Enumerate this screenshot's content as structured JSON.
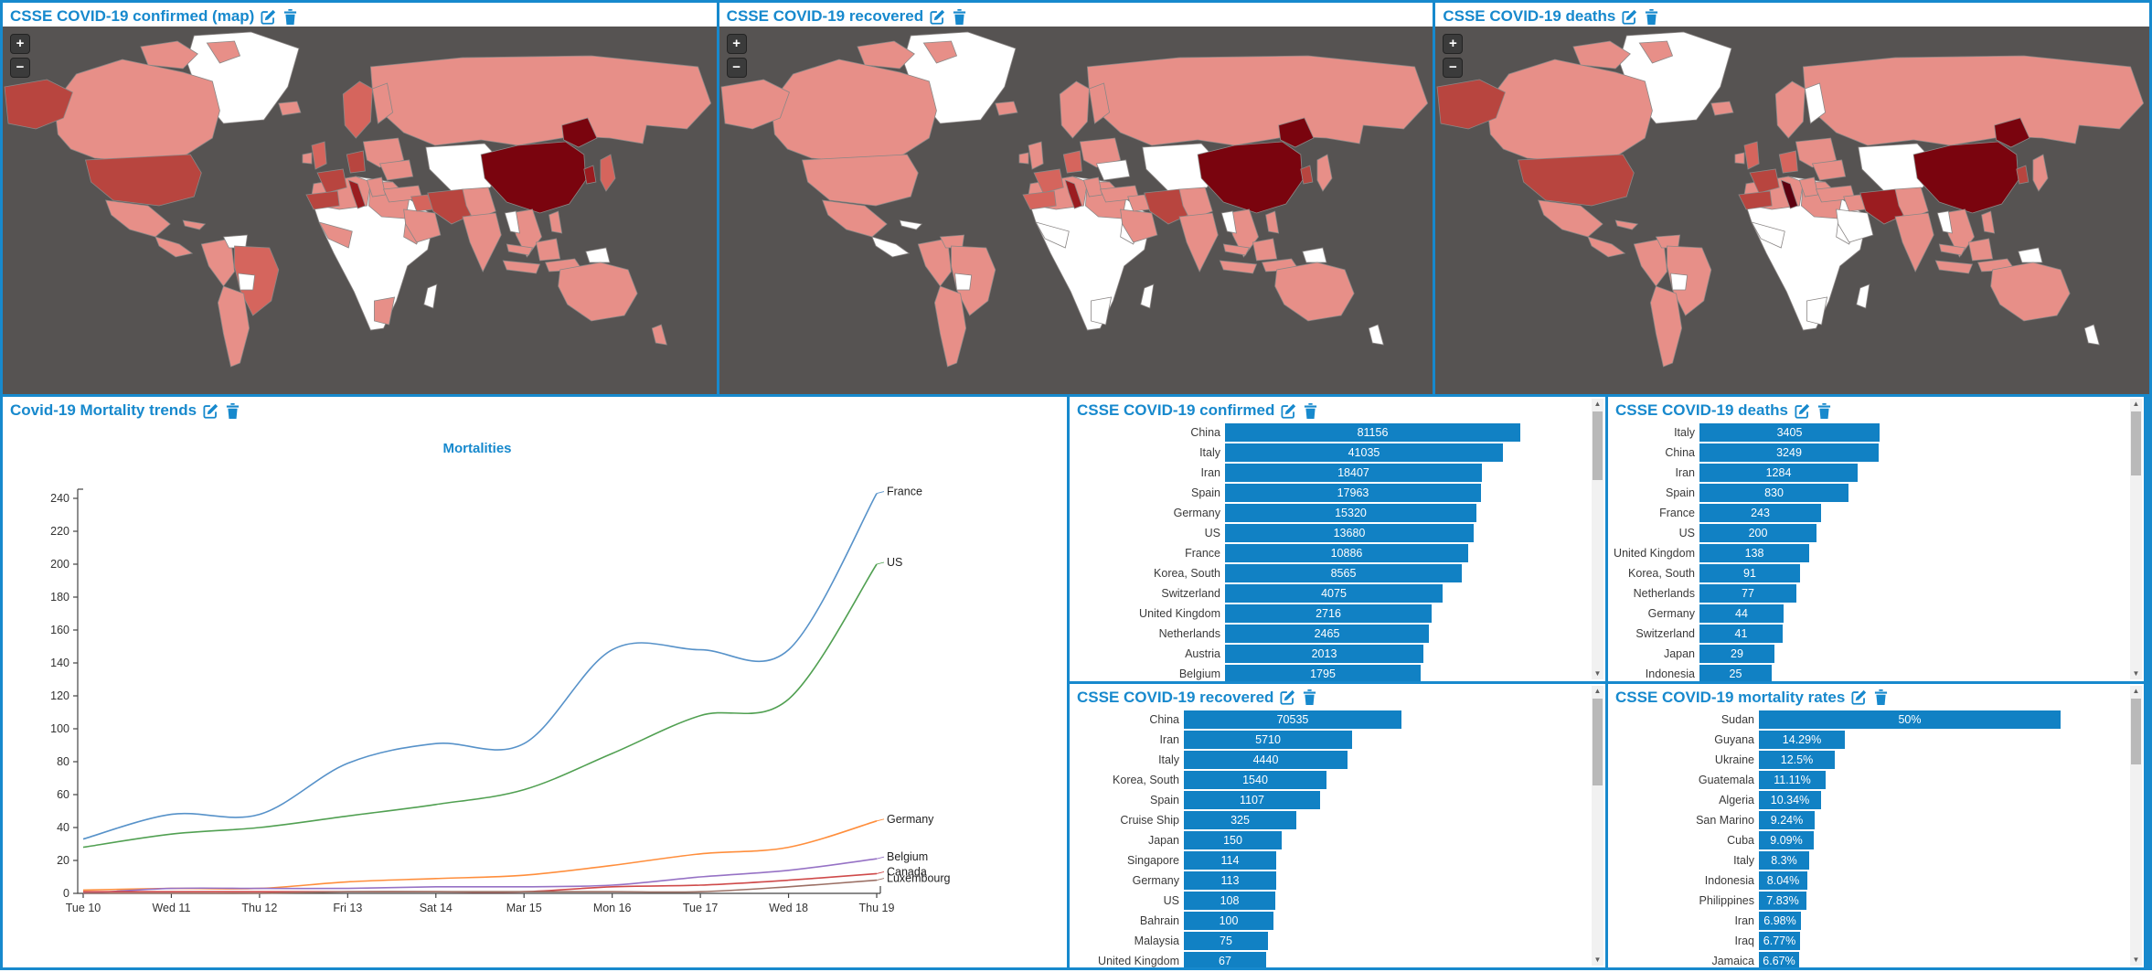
{
  "colors": {
    "frame_blue": "#1789cd",
    "title_blue": "#1789cd",
    "bar_blue": "#1181c4",
    "map_ocean": "#565352",
    "axis": "#444444",
    "tick_label": "#333333"
  },
  "map_zoom": {
    "in": "+",
    "out": "−"
  },
  "maps": {
    "ocean": "#565352",
    "palette": {
      "white": "#ffffff",
      "p1": "#e78f88",
      "p2": "#d5655d",
      "p3": "#b8453f",
      "p4": "#9b1c20",
      "p5": "#7a040e",
      "p6": "#5c0010"
    },
    "default_fills": {
      "greenland": "white",
      "iceland": "p1",
      "canada_islands": "p1",
      "canada": "p1",
      "alaska": "p3",
      "us": "p3",
      "mexico": "p1",
      "camerica": "p1",
      "cuba": "p1",
      "sam_nw": "p1",
      "sam_ven": "white",
      "sam_brazil": "p2",
      "sam_arg": "p1",
      "sam_bol": "white",
      "africa_base": "white",
      "africa_nw": "p1",
      "africa_ne": "p1",
      "africa_west": "p1",
      "africa_eth": "p1",
      "africa_sa": "p1",
      "madagascar": "white",
      "russia": "p1",
      "centralasia": "white",
      "scand": "p2",
      "finland": "p1",
      "uk": "p2",
      "ireland": "p1",
      "easteur": "p1",
      "ukraine": "p1",
      "germany": "p3",
      "france": "p3",
      "iberia": "p3",
      "italy": "p4",
      "balkans": "p1",
      "turkey": "p1",
      "saudi": "p1",
      "iraq": "p2",
      "iran": "p3",
      "afpak": "p1",
      "india": "p1",
      "mongolia": "p1",
      "china": "p5",
      "china_ne": "p5",
      "korea": "p4",
      "japan": "p2",
      "indochina": "p1",
      "myanmar": "white",
      "malaysia": "p1",
      "borneo": "p1",
      "indonesia1": "p1",
      "indonesia2": "p1",
      "philippines": "p1",
      "png": "white",
      "australia": "p1",
      "nz": "p1"
    },
    "items": [
      {
        "title": "CSSE COVID-19 confirmed (map)",
        "overrides": {}
      },
      {
        "title": "CSSE COVID-19 recovered",
        "overrides": {
          "alaska": "p1",
          "us": "p1",
          "germany": "p2",
          "france": "p2",
          "iberia": "p2",
          "uk": "p1",
          "ukraine": "white",
          "mongolia": "white",
          "sam_brazil": "p1",
          "sam_ven": "p1",
          "camerica": "white",
          "cuba": "white",
          "africa_west": "white",
          "africa_eth": "white",
          "africa_sa": "white",
          "iraq": "p1",
          "japan": "p1",
          "korea": "p3",
          "scand": "p1",
          "nz": "white"
        }
      },
      {
        "title": "CSSE COVID-19 deaths",
        "overrides": {
          "finland": "white",
          "scand": "p1",
          "italy": "p6",
          "germany": "p2",
          "mongolia": "white",
          "sam_brazil": "p1",
          "sam_ven": "p1",
          "africa_west": "white",
          "africa_eth": "white",
          "africa_sa": "white",
          "saudi": "white",
          "iraq": "p1",
          "iran": "p4",
          "japan": "p1",
          "korea": "p3",
          "png": "white",
          "nz": "white"
        }
      }
    ]
  },
  "chart_data": [
    {
      "type": "line",
      "panel_title": "Covid-19 Mortality trends",
      "title": "Mortalities",
      "x_labels": [
        "Tue 10",
        "Wed 11",
        "Thu 12",
        "Fri 13",
        "Sat 14",
        "Mar 15",
        "Mon 16",
        "Tue 17",
        "Wed 18",
        "Thu 19"
      ],
      "yticks": [
        0,
        20,
        40,
        60,
        80,
        100,
        120,
        140,
        160,
        180,
        200,
        220,
        240
      ],
      "ylim": [
        0,
        240
      ],
      "grid": false,
      "legend_position": "line-end-labels",
      "series": [
        {
          "name": "France",
          "color": "#5792c9",
          "values": [
            33,
            48,
            48,
            79,
            91,
            91,
            148,
            148,
            148,
            243
          ]
        },
        {
          "name": "US",
          "color": "#51a052",
          "values": [
            28,
            36,
            40,
            47,
            54,
            63,
            85,
            108,
            118,
            200
          ]
        },
        {
          "name": "Germany",
          "color": "#ff8e3c",
          "values": [
            2,
            3,
            3,
            7,
            9,
            11,
            17,
            24,
            28,
            44
          ]
        },
        {
          "name": "Belgium",
          "color": "#9672c5",
          "values": [
            0,
            3,
            3,
            3,
            4,
            4,
            5,
            10,
            14,
            21
          ]
        },
        {
          "name": "Canada",
          "color": "#cf4a4a",
          "values": [
            1,
            1,
            1,
            1,
            1,
            1,
            4,
            5,
            8,
            12
          ]
        },
        {
          "name": "Luxembourg",
          "color": "#9b7065",
          "values": [
            0,
            0,
            0,
            1,
            1,
            1,
            1,
            1,
            4,
            8
          ]
        }
      ]
    },
    {
      "type": "bar",
      "orientation": "horizontal",
      "scale": "log",
      "title": "CSSE COVID-19 confirmed",
      "categories": [
        "China",
        "Italy",
        "Iran",
        "Spain",
        "Germany",
        "US",
        "France",
        "Korea, South",
        "Switzerland",
        "United Kingdom",
        "Netherlands",
        "Austria",
        "Belgium"
      ],
      "values": [
        81156,
        41035,
        18407,
        17963,
        15320,
        13680,
        10886,
        8565,
        4075,
        2716,
        2465,
        2013,
        1795
      ],
      "display": [
        "81156",
        "41035",
        "18407",
        "17963",
        "15320",
        "13680",
        "10886",
        "8565",
        "4075",
        "2716",
        "2465",
        "2013",
        "1795"
      ]
    },
    {
      "type": "bar",
      "orientation": "horizontal",
      "scale": "log",
      "title": "CSSE COVID-19 deaths",
      "categories": [
        "Italy",
        "China",
        "Iran",
        "Spain",
        "France",
        "US",
        "United Kingdom",
        "Korea, South",
        "Netherlands",
        "Germany",
        "Switzerland",
        "Japan",
        "Indonesia"
      ],
      "values": [
        3405,
        3249,
        1284,
        830,
        243,
        200,
        138,
        91,
        77,
        44,
        41,
        29,
        25
      ],
      "display": [
        "3405",
        "3249",
        "1284",
        "830",
        "243",
        "200",
        "138",
        "91",
        "77",
        "44",
        "41",
        "29",
        "25"
      ]
    },
    {
      "type": "bar",
      "orientation": "horizontal",
      "scale": "log",
      "title": "CSSE COVID-19 recovered",
      "categories": [
        "China",
        "Iran",
        "Italy",
        "Korea, South",
        "Spain",
        "Cruise Ship",
        "Japan",
        "Singapore",
        "Germany",
        "US",
        "Bahrain",
        "Malaysia",
        "United Kingdom"
      ],
      "values": [
        70535,
        5710,
        4440,
        1540,
        1107,
        325,
        150,
        114,
        113,
        108,
        100,
        75,
        67
      ],
      "display": [
        "70535",
        "5710",
        "4440",
        "1540",
        "1107",
        "325",
        "150",
        "114",
        "113",
        "108",
        "100",
        "75",
        "67"
      ]
    },
    {
      "type": "bar",
      "orientation": "horizontal",
      "scale": "linear",
      "title": "CSSE COVID-19 mortality rates",
      "categories": [
        "Sudan",
        "Guyana",
        "Ukraine",
        "Guatemala",
        "Algeria",
        "San Marino",
        "Cuba",
        "Italy",
        "Indonesia",
        "Philippines",
        "Iran",
        "Iraq",
        "Jamaica"
      ],
      "values": [
        50,
        14.29,
        12.5,
        11.11,
        10.34,
        9.24,
        9.09,
        8.3,
        8.04,
        7.83,
        6.98,
        6.77,
        6.67
      ],
      "display": [
        "50%",
        "14.29%",
        "12.5%",
        "11.11%",
        "10.34%",
        "9.24%",
        "9.09%",
        "8.3%",
        "8.04%",
        "7.83%",
        "6.98%",
        "6.77%",
        "6.67%"
      ]
    }
  ]
}
